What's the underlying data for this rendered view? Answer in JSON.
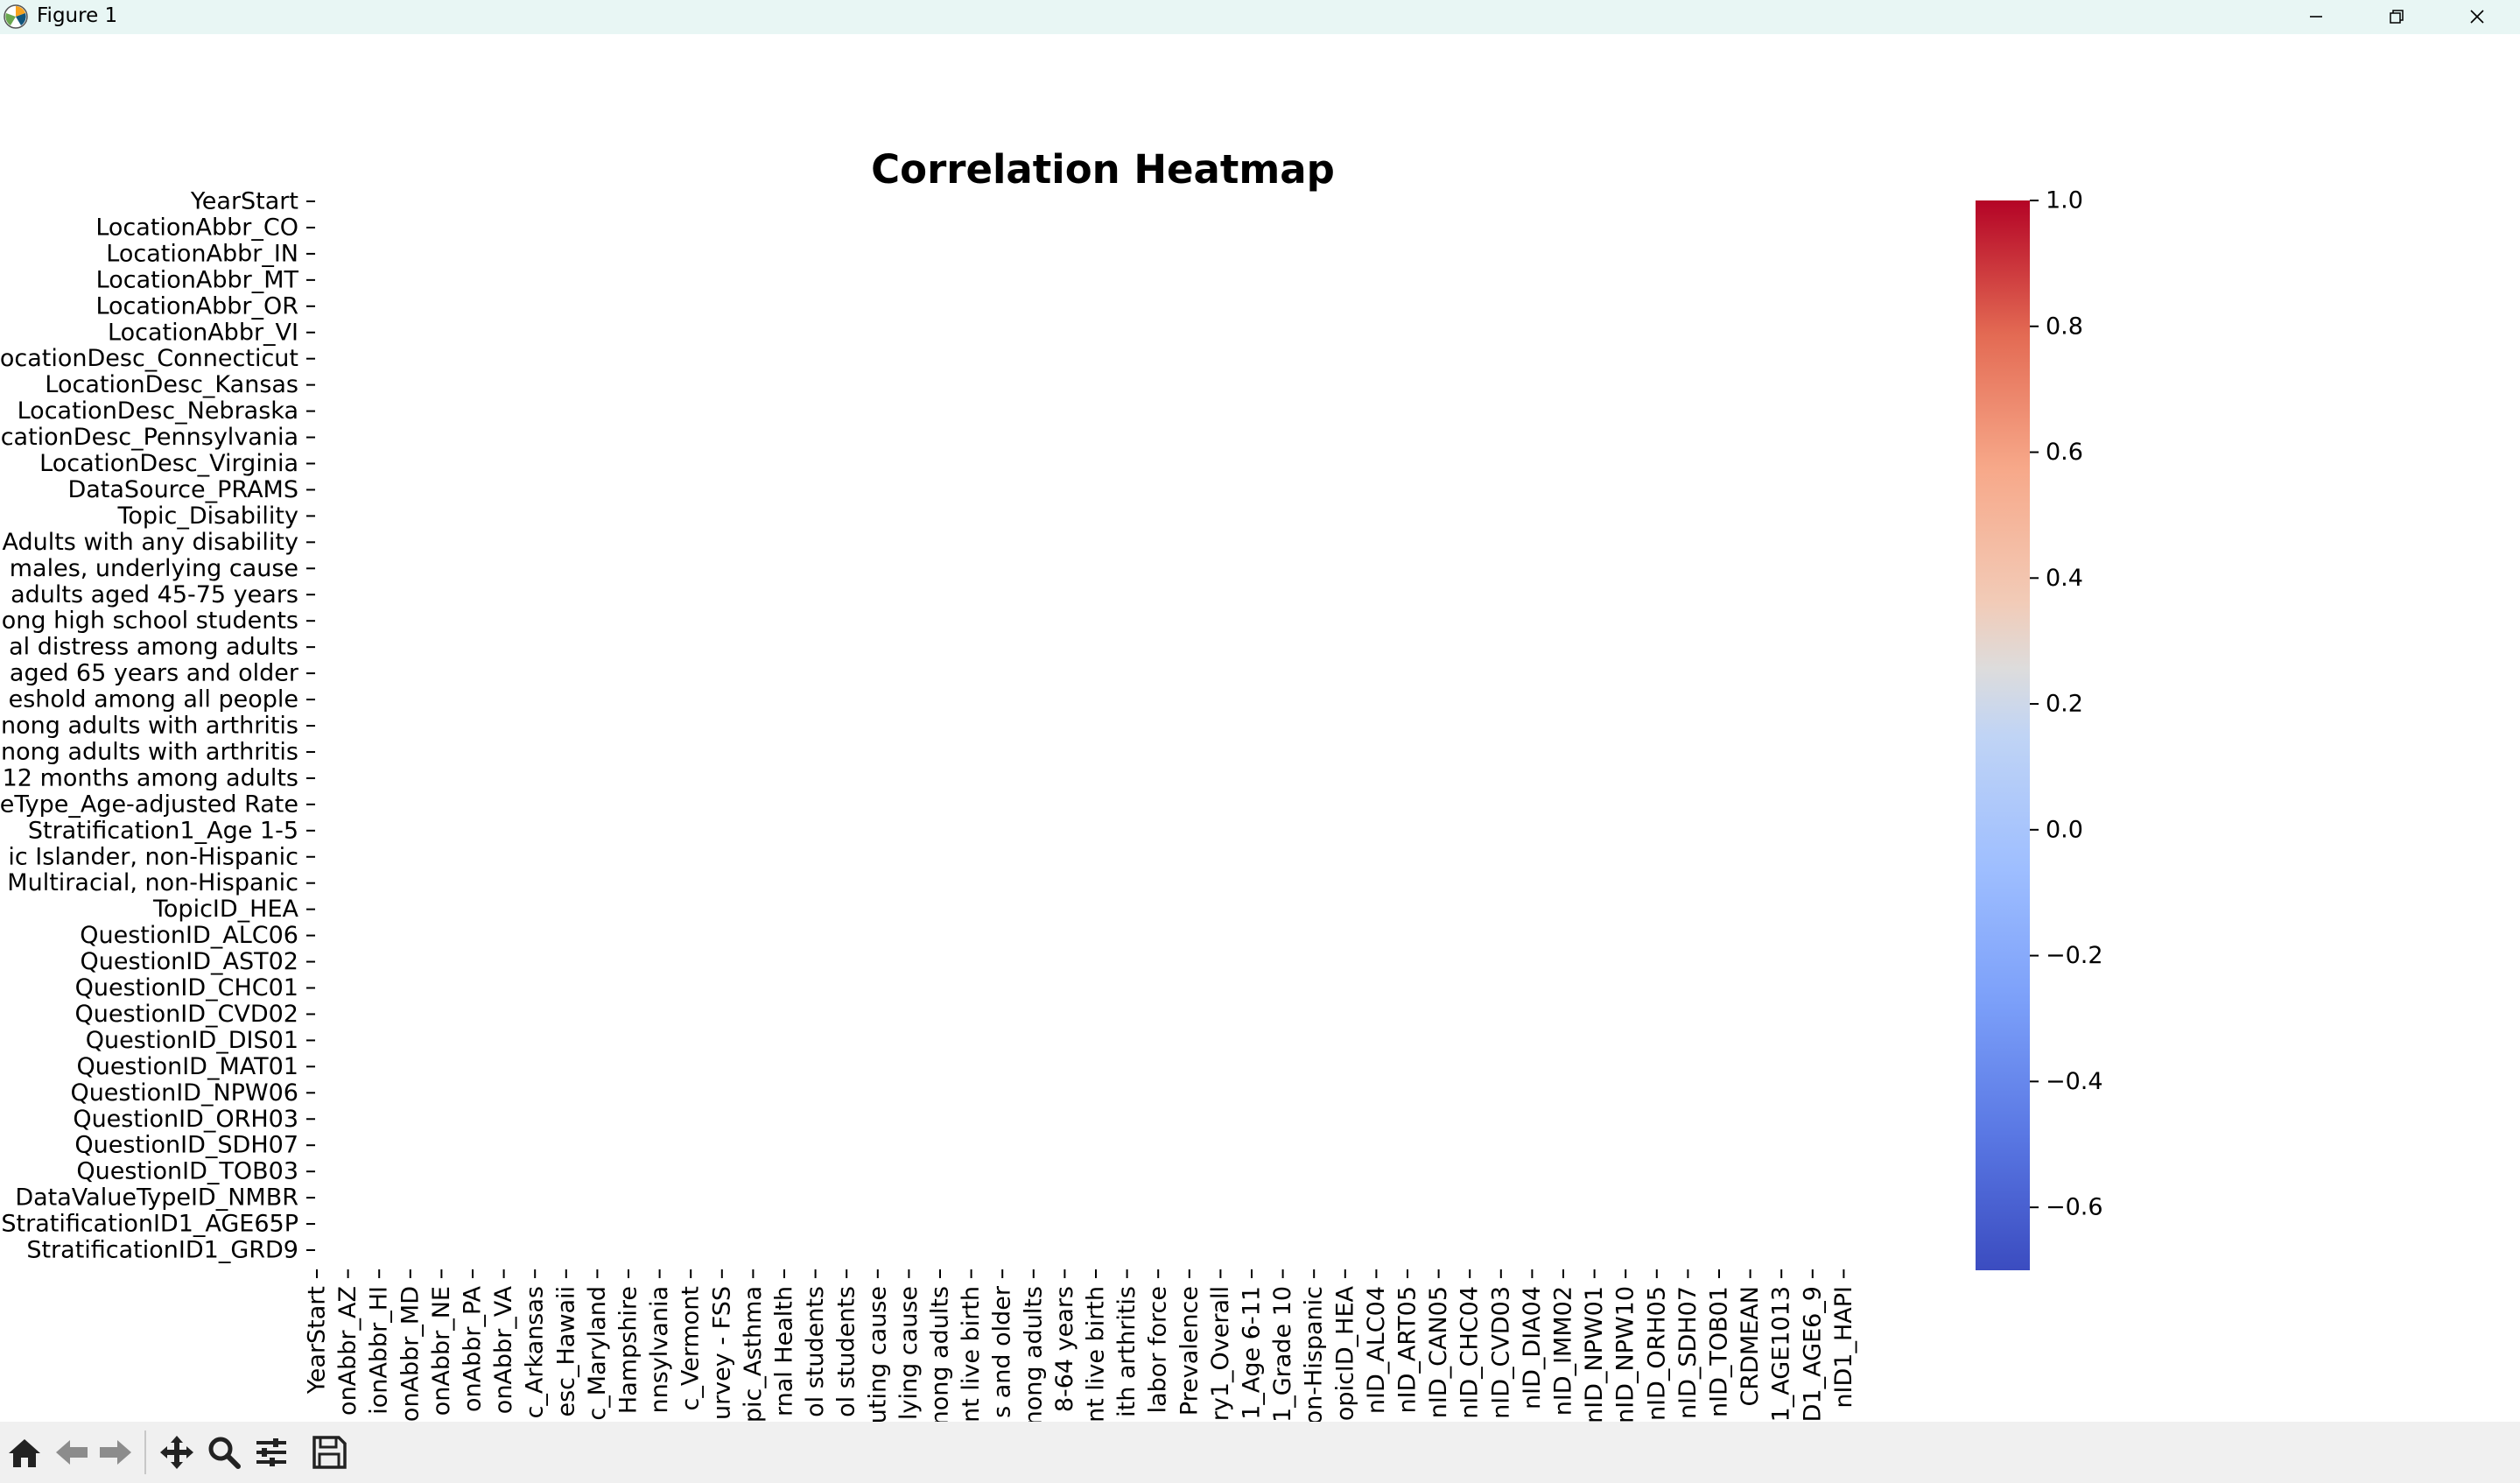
{
  "window": {
    "title": "Figure 1",
    "controls": [
      "minimize-icon",
      "restore-icon",
      "close-icon"
    ]
  },
  "toolbar": {
    "tools": [
      "home-icon",
      "back-arrow-icon",
      "forward-arrow-icon",
      "pan-icon",
      "zoom-icon",
      "configure-subplots-icon",
      "save-icon"
    ]
  },
  "chart_data": {
    "type": "heatmap",
    "title": "Correlation Heatmap",
    "xlabel": "",
    "ylabel": "",
    "colormap": "coolwarm",
    "colors": {
      "high": "#b40426",
      "mid": "#dddddd",
      "low": "#3b4cc0"
    },
    "values": [],
    "y_ticks": [
      "YearStart",
      "LocationAbbr_CO",
      "LocationAbbr_IN",
      "LocationAbbr_MT",
      "LocationAbbr_OR",
      "LocationAbbr_VI",
      "ocationDesc_Connecticut",
      "LocationDesc_Kansas",
      "LocationDesc_Nebraska",
      "cationDesc_Pennsylvania",
      "LocationDesc_Virginia",
      "DataSource_PRAMS",
      "Topic_Disability",
      "Adults with any disability",
      "males, underlying cause",
      "adults aged 45-75 years",
      "ong high school students",
      "al distress among adults",
      "aged 65 years and older",
      "eshold among all people",
      "nong adults with arthritis",
      "nong adults with arthritis",
      "12 months among adults",
      "eType_Age-adjusted Rate",
      "Stratification1_Age 1-5",
      "ic Islander, non-Hispanic",
      "Multiracial, non-Hispanic",
      "TopicID_HEA",
      "QuestionID_ALC06",
      "QuestionID_AST02",
      "QuestionID_CHC01",
      "QuestionID_CVD02",
      "QuestionID_DIS01",
      "QuestionID_MAT01",
      "QuestionID_NPW06",
      "QuestionID_ORH03",
      "QuestionID_SDH07",
      "QuestionID_TOB03",
      "DataValueTypeID_NMBR",
      "StratificationID1_AGE65P",
      "StratificationID1_GRD9"
    ],
    "x_ticks": [
      "YearStart",
      "onAbbr_AZ",
      "ionAbbr_HI",
      "onAbbr_MD",
      "onAbbr_NE",
      "onAbbr_PA",
      "onAbbr_VA",
      "c_Arkansas",
      "esc_Hawaii",
      "c_Maryland",
      "Hampshire",
      "nnsylvania",
      "c_Vermont",
      "urvey - FSS",
      "pic_Asthma",
      "rnal Health",
      "ol students",
      "ol students",
      "uting cause",
      "lying cause",
      "nong adults",
      "nt live birth",
      "s and older",
      "nong adults",
      "8-64 years",
      "nt live birth",
      "ith arthritis",
      "labor force",
      "Prevalence",
      "ry1_Overall",
      "1_Age 6-11",
      "1_Grade 10",
      "on-Hispanic",
      "opicID_HEA",
      "nID_ALC04",
      "nID_ART05",
      "nID_CAN05",
      "nID_CHC04",
      "nID_CVD03",
      "nID_DIA04",
      "nID_IMM02",
      "nID_NPW01",
      "nID_NPW10",
      "nID_ORH05",
      "nID_SDH07",
      "nID_TOB01",
      "CRDMEAN",
      "1_AGE1013",
      "D1_AGE6_9",
      "nID1_HAPI"
    ],
    "colorbar": {
      "range": [
        -0.7,
        1.0
      ],
      "ticks": [
        "1.0",
        "0.8",
        "0.6",
        "0.4",
        "0.2",
        "0.0",
        "−0.2",
        "−0.4",
        "−0.6"
      ],
      "tick_values": [
        1.0,
        0.8,
        0.6,
        0.4,
        0.2,
        0.0,
        -0.2,
        -0.4,
        -0.6
      ]
    }
  }
}
